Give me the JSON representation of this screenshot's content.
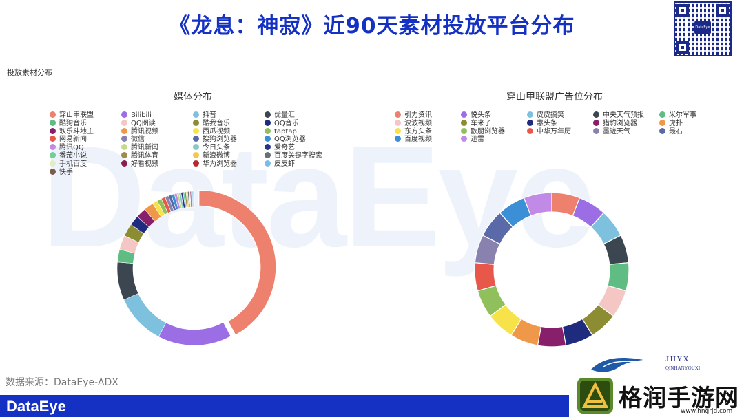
{
  "title": "《龙息：神寂》近90天素材投放平台分布",
  "section_label": "投放素材分布",
  "watermark": "DataEye",
  "qr_center_text": "DataEye",
  "source_text": "数据来源：DataEye-ADX",
  "footer_logo": "DataEye",
  "brand": {
    "small_text": "JHYX",
    "small_text_2": "QINHANYOUXI",
    "name": "格润手游网",
    "url": "www.hngrjd.com"
  },
  "chart_data": [
    {
      "type": "pie",
      "title": "媒体分布",
      "legend_placement": "top",
      "series": [
        {
          "name": "穿山甲联盟",
          "value": 39.5,
          "color": "#ee806e"
        },
        {
          "name": "Bilibili",
          "value": 14.5,
          "color": "#9b6ee6"
        },
        {
          "name": "抖音",
          "value": 10.0,
          "color": "#7ec1df"
        },
        {
          "name": "优量汇",
          "value": 7.5,
          "color": "#3b4650"
        },
        {
          "name": "酷狗音乐",
          "value": 2.5,
          "color": "#5fbd84"
        },
        {
          "name": "QQ阅读",
          "value": 2.8,
          "color": "#f4c6c4"
        },
        {
          "name": "酷我音乐",
          "value": 2.5,
          "color": "#8c8c32"
        },
        {
          "name": "QQ音乐",
          "value": 2.0,
          "color": "#1f2c7d"
        },
        {
          "name": "欢乐斗地主",
          "value": 2.0,
          "color": "#871f6a"
        },
        {
          "name": "腾讯视频",
          "value": 1.9,
          "color": "#f0984a"
        },
        {
          "name": "西瓜视频",
          "value": 1.0,
          "color": "#f7e24a"
        },
        {
          "name": "taptap",
          "value": 0.9,
          "color": "#8fc05c"
        },
        {
          "name": "网易新闻",
          "value": 0.8,
          "color": "#e8584a"
        },
        {
          "name": "微信",
          "value": 0.7,
          "color": "#8a82ae"
        },
        {
          "name": "搜狗浏览器",
          "value": 0.6,
          "color": "#5a6aa8"
        },
        {
          "name": "QQ浏览器",
          "value": 0.6,
          "color": "#3b8fd6"
        },
        {
          "name": "腾讯QQ",
          "value": 0.5,
          "color": "#c18ae6"
        },
        {
          "name": "腾讯新闻",
          "value": 0.4,
          "color": "#c8d98e"
        },
        {
          "name": "今日头条",
          "value": 0.4,
          "color": "#88c9c4"
        },
        {
          "name": "爱奇艺",
          "value": 0.4,
          "color": "#26358c"
        },
        {
          "name": "番茄小说",
          "value": 0.3,
          "color": "#6fcf97"
        },
        {
          "name": "腾讯体育",
          "value": 0.3,
          "color": "#a08b52"
        },
        {
          "name": "新浪微博",
          "value": 0.3,
          "color": "#f2c94c"
        },
        {
          "name": "百度关键字搜索",
          "value": 0.3,
          "color": "#6b7078"
        },
        {
          "name": "手机百度",
          "value": 0.2,
          "color": "#e2ecc6"
        },
        {
          "name": "好看视频",
          "value": 0.2,
          "color": "#8a1f4e"
        },
        {
          "name": "华为浏览器",
          "value": 0.2,
          "color": "#b8282e"
        },
        {
          "name": "皮皮虾",
          "value": 0.2,
          "color": "#7bbde8"
        },
        {
          "name": "快手",
          "value": 0.2,
          "color": "#7a5c52"
        }
      ]
    },
    {
      "type": "pie",
      "title": "穿山甲联盟广告位分布",
      "legend_placement": "top",
      "series": [
        {
          "name": "引力资讯",
          "value": 6,
          "color": "#ee806e"
        },
        {
          "name": "悦头条",
          "value": 6,
          "color": "#9b6ee6"
        },
        {
          "name": "皮皮搞笑",
          "value": 6,
          "color": "#7ec1df"
        },
        {
          "name": "中央天气预报",
          "value": 6,
          "color": "#3b4650"
        },
        {
          "name": "米尔军事",
          "value": 6,
          "color": "#5fbd84"
        },
        {
          "name": "波波视频",
          "value": 6,
          "color": "#f4c6c4"
        },
        {
          "name": "车来了",
          "value": 6,
          "color": "#8c8c32"
        },
        {
          "name": "惠头条",
          "value": 6,
          "color": "#1f2c7d"
        },
        {
          "name": "猎豹浏览器",
          "value": 6,
          "color": "#871f6a"
        },
        {
          "name": "虎扑",
          "value": 6,
          "color": "#f0984a"
        },
        {
          "name": "东方头条",
          "value": 6,
          "color": "#f7e24a"
        },
        {
          "name": "欧朋浏览器",
          "value": 6,
          "color": "#8fc05c"
        },
        {
          "name": "中华万年历",
          "value": 6,
          "color": "#e8584a"
        },
        {
          "name": "墨迹天气",
          "value": 6,
          "color": "#8a82ae"
        },
        {
          "name": "最右",
          "value": 6,
          "color": "#5a6aa8"
        },
        {
          "name": "百度视频",
          "value": 6,
          "color": "#3b8fd6"
        },
        {
          "name": "迅雷",
          "value": 6,
          "color": "#c18ae6"
        }
      ]
    }
  ]
}
